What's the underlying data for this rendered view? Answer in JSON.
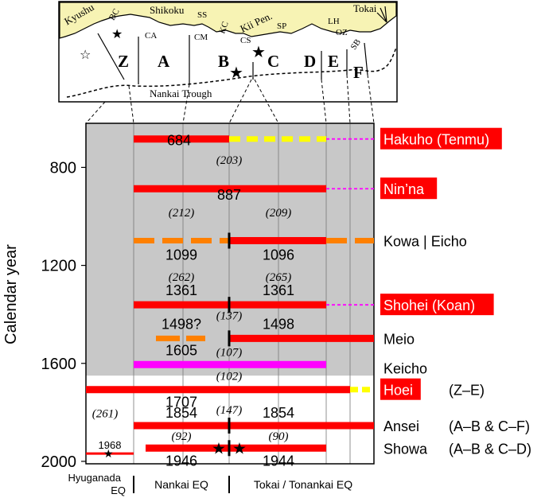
{
  "map": {
    "region_labels": [
      "Kyushu",
      "BC",
      "Shikoku",
      "SS",
      "KC",
      "Kii Pen.",
      "Tokai",
      "LH",
      "CA",
      "CM",
      "CS",
      "SP",
      "OZ",
      "SB"
    ],
    "segments": [
      "Z",
      "A",
      "B",
      "C",
      "D",
      "E",
      "F"
    ],
    "trough_label": "Nankai Trough"
  },
  "axis": {
    "ylabel": "Calendar year",
    "ticks": [
      800,
      1200,
      1600,
      2000
    ],
    "ylim": [
      620,
      2010
    ]
  },
  "events": [
    {
      "year": 684,
      "name": "Hakuho (Tenmu)",
      "highlight": true,
      "year_labels": [
        "684"
      ],
      "range_note": ""
    },
    {
      "year": 887,
      "name": "Nin’na",
      "highlight": true,
      "year_labels": [
        "887"
      ],
      "range_note": ""
    },
    {
      "year": 1099,
      "name": "Kowa | Eicho",
      "highlight": false,
      "year_labels": [
        "1099",
        "1096"
      ],
      "range_note": ""
    },
    {
      "year": 1361,
      "name": "Shohei (Koan)",
      "highlight": true,
      "year_labels": [
        "1361",
        "1361"
      ],
      "range_note": ""
    },
    {
      "year": 1498,
      "name": "Meio",
      "highlight": false,
      "year_labels": [
        "1498?",
        "1498"
      ],
      "range_note": ""
    },
    {
      "year": 1605,
      "name": "Keicho",
      "highlight": false,
      "year_labels": [
        "1605"
      ],
      "range_note": ""
    },
    {
      "year": 1707,
      "name": "Hoei",
      "highlight": true,
      "year_labels": [
        "1707"
      ],
      "range_note": "(Z–E)"
    },
    {
      "year": 1854,
      "name": "Ansei",
      "highlight": false,
      "year_labels": [
        "1854",
        "1854"
      ],
      "range_note": "(A–B & C–F)"
    },
    {
      "year": 1946,
      "name": "Showa",
      "highlight": false,
      "year_labels": [
        "1946",
        "1944"
      ],
      "range_note": "(A–B & C–D)"
    }
  ],
  "hyuganada_year": "1968",
  "intervals": [
    "(203)",
    "(212)",
    "(209)",
    "(262)",
    "(265)",
    "(137)",
    "(107)",
    "(102)",
    "(147)",
    "(261)",
    "(92)",
    "(90)"
  ],
  "bottom_labels": {
    "hyuganada": "Hyuganada EQ",
    "nankai": "Nankai EQ",
    "tokai": "Tokai / Tonankai EQ"
  },
  "colors": {
    "rupture": "#ff0000",
    "uncertain_orange": "#ff8000",
    "uncertain_yellow": "#ffff00",
    "keicho": "#ff00ff",
    "shade": "#c8c8c8",
    "land": "#f7f3b4",
    "map_sea": "#ffffff",
    "highlight_box": "#ff0000"
  }
}
